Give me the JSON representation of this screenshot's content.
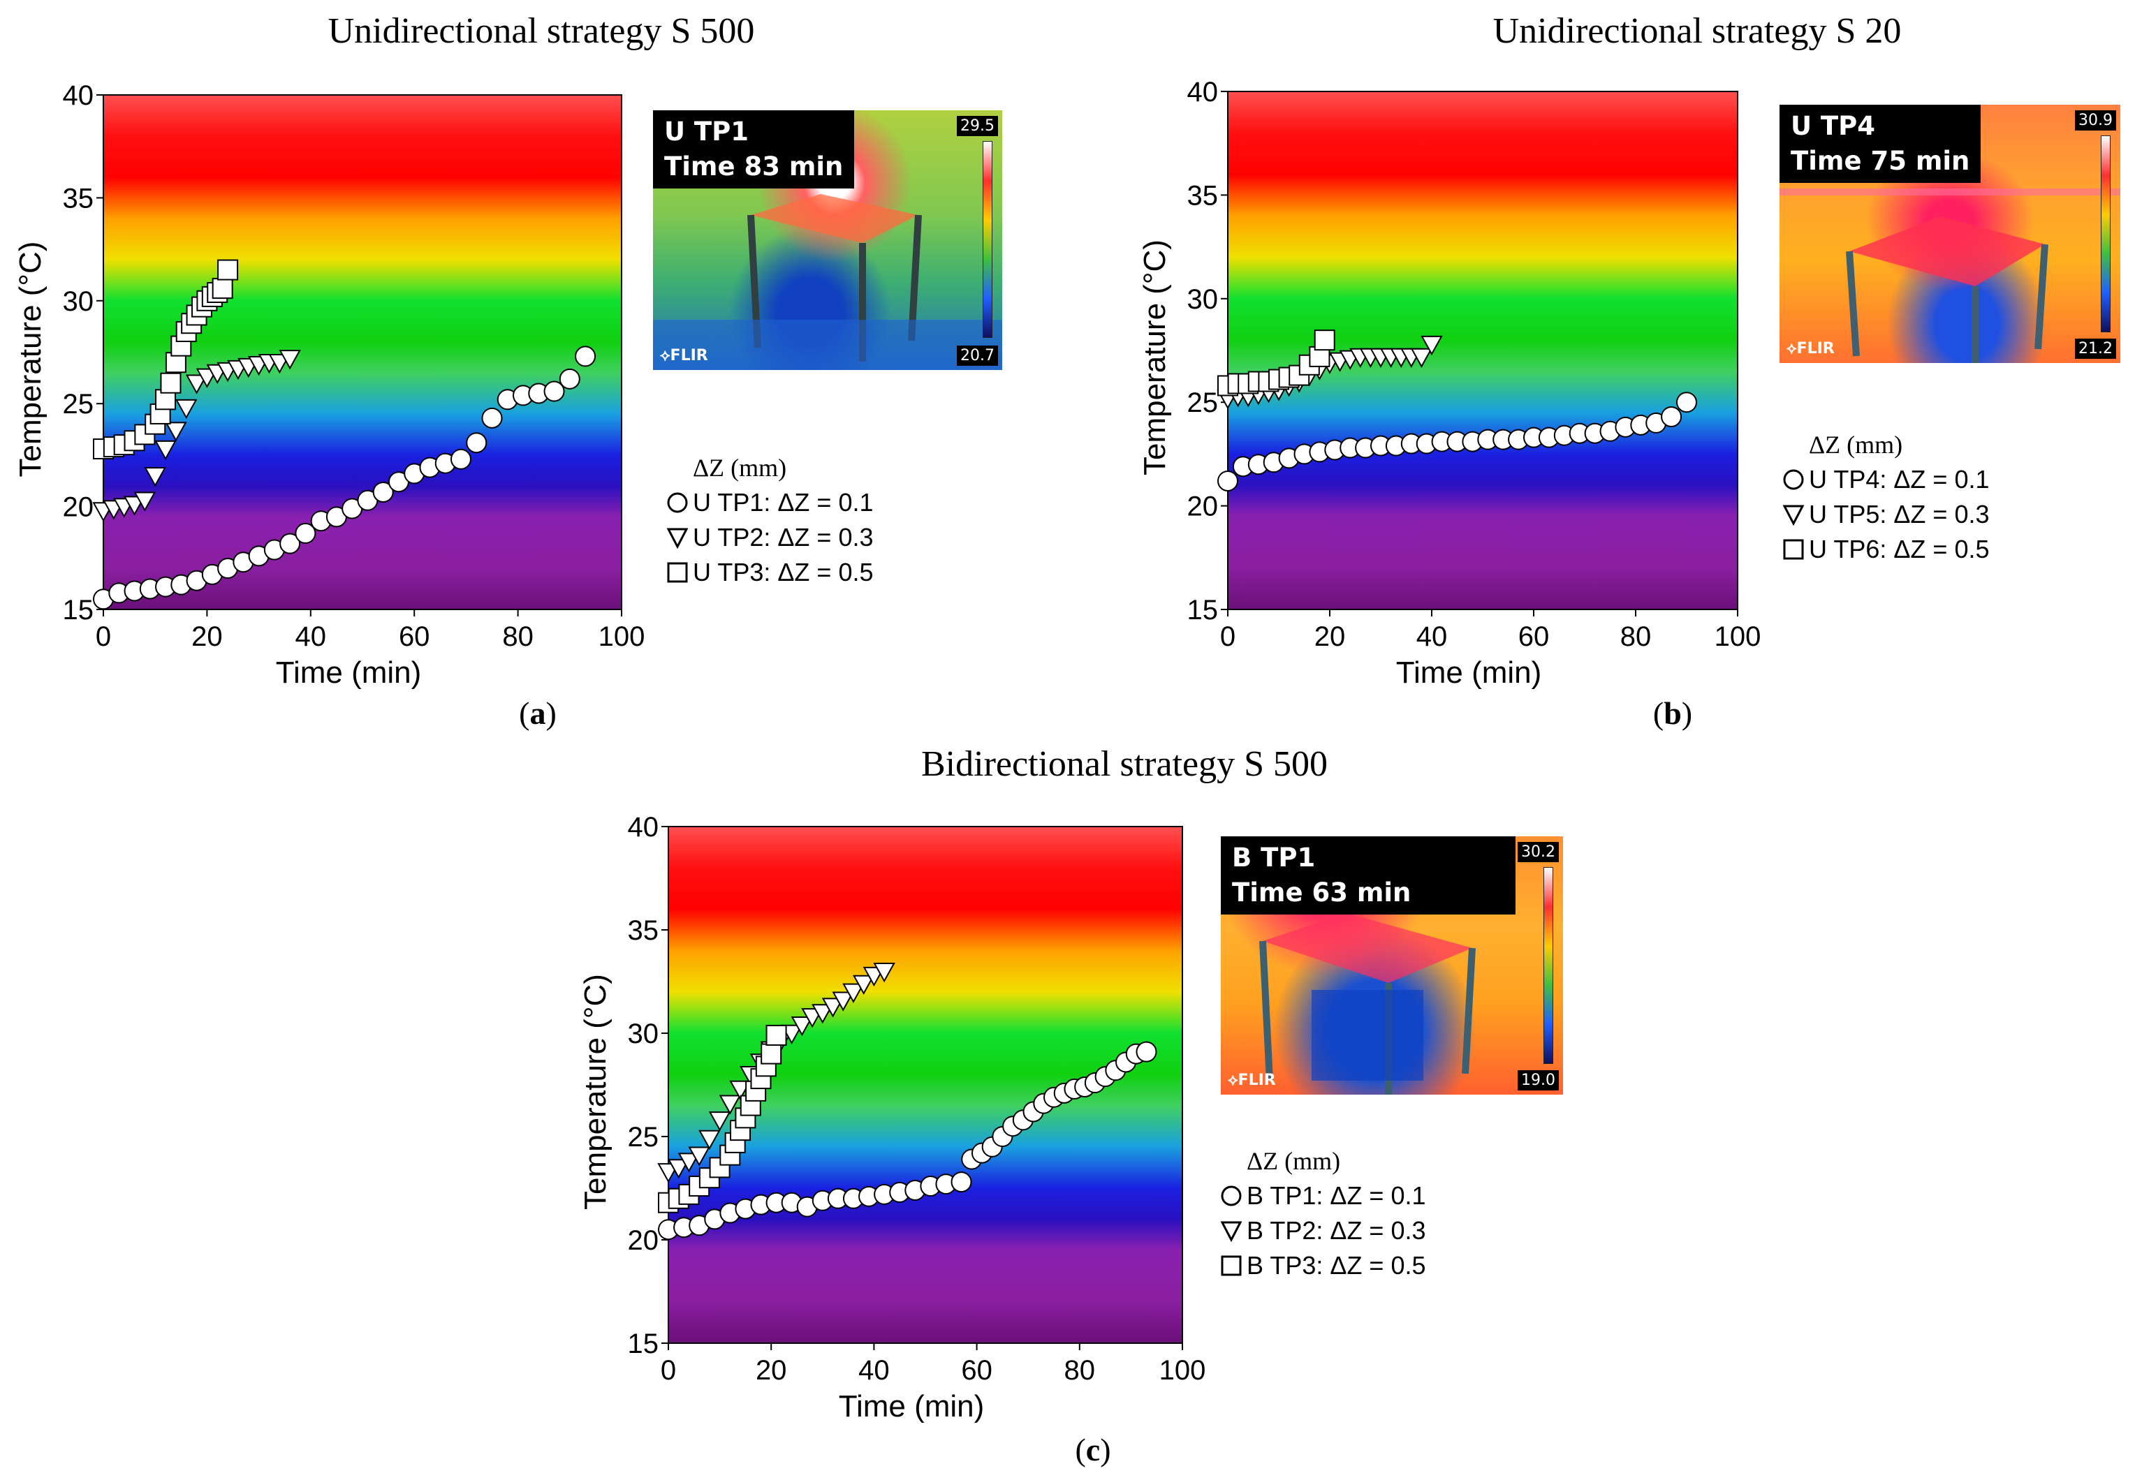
{
  "figure": {
    "panels": [
      {
        "id": "a",
        "title": "Unidirectional strategy S 500",
        "caption_letter": "a",
        "thermal": {
          "label_line1": "U TP1",
          "label_line2": "Time 83 min",
          "scale_max": "29.5",
          "scale_min": "20.7",
          "brand": "FLIR"
        },
        "legend_title": "ΔZ (mm)",
        "series_labels": [
          "U TP1: ΔZ = 0.1",
          "U TP2: ΔZ = 0.3",
          "U TP3: ΔZ = 0.5"
        ]
      },
      {
        "id": "b",
        "title": "Unidirectional strategy S 20",
        "caption_letter": "b",
        "thermal": {
          "label_line1": "U TP4",
          "label_line2": "Time 75 min",
          "scale_max": "30.9",
          "scale_min": "21.2",
          "brand": "FLIR"
        },
        "legend_title": "ΔZ (mm)",
        "series_labels": [
          "U TP4: ΔZ = 0.1",
          "U TP5: ΔZ = 0.3",
          "U TP6: ΔZ = 0.5"
        ]
      },
      {
        "id": "c",
        "title": "Bidirectional strategy S 500",
        "caption_letter": "c",
        "thermal": {
          "label_line1": "B TP1",
          "label_line2": "Time 63 min",
          "scale_max": "30.2",
          "scale_min": "19.0",
          "brand": "FLIR"
        },
        "legend_title": "ΔZ (mm)",
        "series_labels": [
          "B TP1: ΔZ = 0.1",
          "B TP2: ΔZ = 0.3",
          "B TP3: ΔZ = 0.5"
        ]
      }
    ],
    "background_gradient": {
      "stops_temperature": [
        15,
        17,
        19.5,
        21,
        22.5,
        24.5,
        26.5,
        28,
        30,
        32,
        34,
        36,
        38,
        40
      ],
      "colors": [
        "#6a0f78",
        "#8a1fa0",
        "#8a20b0",
        "#2a10c0",
        "#1a20e0",
        "#1aa0e0",
        "#40d060",
        "#10d010",
        "#10e030",
        "#f0e000",
        "#ffa000",
        "#ff0000",
        "#ff1010",
        "#ff5050"
      ]
    }
  },
  "chart_data": [
    {
      "type": "scatter",
      "title": "Unidirectional strategy S 500",
      "xlabel": "Time (min)",
      "ylabel": "Temperature (°C)",
      "xlim": [
        0,
        100
      ],
      "ylim": [
        15,
        40
      ],
      "xticks": [
        0,
        20,
        40,
        60,
        80,
        100
      ],
      "yticks": [
        15,
        20,
        25,
        30,
        35,
        40
      ],
      "series": [
        {
          "name": "U TP1: ΔZ = 0.1",
          "marker": "circle",
          "x": [
            0,
            3,
            6,
            9,
            12,
            15,
            18,
            21,
            24,
            27,
            30,
            33,
            36,
            39,
            42,
            45,
            48,
            51,
            54,
            57,
            60,
            63,
            66,
            69,
            72,
            75,
            78,
            81,
            84,
            87,
            90,
            93
          ],
          "y": [
            15.5,
            15.8,
            15.9,
            16.0,
            16.1,
            16.2,
            16.4,
            16.7,
            17.0,
            17.3,
            17.6,
            17.9,
            18.2,
            18.7,
            19.3,
            19.5,
            19.9,
            20.3,
            20.7,
            21.2,
            21.6,
            21.9,
            22.1,
            22.3,
            23.1,
            24.3,
            25.2,
            25.4,
            25.5,
            25.6,
            26.2,
            27.3
          ]
        },
        {
          "name": "U TP2: ΔZ = 0.3",
          "marker": "triangle-down",
          "x": [
            0,
            2,
            4,
            6,
            8,
            10,
            12,
            14,
            16,
            18,
            20,
            22,
            24,
            26,
            28,
            30,
            32,
            34,
            36
          ],
          "y": [
            19.8,
            19.9,
            20.0,
            20.1,
            20.3,
            21.5,
            22.8,
            23.7,
            24.8,
            26.0,
            26.3,
            26.5,
            26.6,
            26.7,
            26.8,
            26.9,
            27.0,
            27.0,
            27.2
          ]
        },
        {
          "name": "U TP3: ΔZ = 0.5",
          "marker": "square",
          "x": [
            0,
            2,
            4,
            6,
            8,
            10,
            11,
            12,
            13,
            14,
            15,
            16,
            17,
            18,
            19,
            20,
            21,
            22,
            23,
            24
          ],
          "y": [
            22.8,
            22.9,
            23.0,
            23.2,
            23.5,
            24.0,
            24.5,
            25.2,
            26.0,
            27.0,
            27.8,
            28.5,
            28.9,
            29.3,
            29.7,
            30.0,
            30.2,
            30.4,
            30.6,
            31.5
          ]
        }
      ]
    },
    {
      "type": "scatter",
      "title": "Unidirectional strategy S 20",
      "xlabel": "Time (min)",
      "ylabel": "Temperature (°C)",
      "xlim": [
        0,
        100
      ],
      "ylim": [
        15,
        40
      ],
      "xticks": [
        0,
        20,
        40,
        60,
        80,
        100
      ],
      "yticks": [
        15,
        20,
        25,
        30,
        35,
        40
      ],
      "series": [
        {
          "name": "U TP4: ΔZ = 0.1",
          "marker": "circle",
          "x": [
            0,
            3,
            6,
            9,
            12,
            15,
            18,
            21,
            24,
            27,
            30,
            33,
            36,
            39,
            42,
            45,
            48,
            51,
            54,
            57,
            60,
            63,
            66,
            69,
            72,
            75,
            78,
            81,
            84,
            87,
            90
          ],
          "y": [
            21.2,
            21.9,
            22.0,
            22.1,
            22.3,
            22.5,
            22.6,
            22.7,
            22.8,
            22.8,
            22.9,
            22.9,
            23.0,
            23.0,
            23.1,
            23.1,
            23.1,
            23.2,
            23.2,
            23.2,
            23.3,
            23.3,
            23.4,
            23.5,
            23.5,
            23.6,
            23.8,
            23.9,
            24.0,
            24.3,
            25.0
          ]
        },
        {
          "name": "U TP5: ΔZ = 0.3",
          "marker": "triangle-down",
          "x": [
            0,
            2,
            4,
            6,
            8,
            10,
            12,
            14,
            16,
            18,
            20,
            22,
            24,
            26,
            28,
            30,
            32,
            34,
            36,
            38,
            40
          ],
          "y": [
            25.2,
            25.3,
            25.3,
            25.4,
            25.5,
            25.6,
            25.8,
            26.0,
            26.3,
            26.6,
            26.9,
            27.0,
            27.1,
            27.2,
            27.2,
            27.2,
            27.2,
            27.2,
            27.2,
            27.2,
            27.8
          ]
        },
        {
          "name": "U TP6: ΔZ = 0.5",
          "marker": "square",
          "x": [
            0,
            2,
            4,
            6,
            8,
            10,
            12,
            14,
            16,
            18,
            19
          ],
          "y": [
            25.8,
            25.9,
            25.9,
            26.0,
            26.0,
            26.1,
            26.2,
            26.3,
            26.8,
            27.2,
            28.0
          ]
        }
      ]
    },
    {
      "type": "scatter",
      "title": "Bidirectional strategy S 500",
      "xlabel": "Time (min)",
      "ylabel": "Temperature (°C)",
      "xlim": [
        0,
        100
      ],
      "ylim": [
        15,
        40
      ],
      "xticks": [
        0,
        20,
        40,
        60,
        80,
        100
      ],
      "yticks": [
        15,
        20,
        25,
        30,
        35,
        40
      ],
      "series": [
        {
          "name": "B TP1: ΔZ = 0.1",
          "marker": "circle",
          "x": [
            0,
            3,
            6,
            9,
            12,
            15,
            18,
            21,
            24,
            27,
            30,
            33,
            36,
            39,
            42,
            45,
            48,
            51,
            54,
            57,
            59,
            61,
            63,
            65,
            67,
            69,
            71,
            73,
            75,
            77,
            79,
            81,
            83,
            85,
            87,
            89,
            91,
            93
          ],
          "y": [
            20.5,
            20.6,
            20.7,
            21.0,
            21.3,
            21.5,
            21.7,
            21.8,
            21.8,
            21.6,
            21.9,
            22.0,
            22.0,
            22.1,
            22.2,
            22.3,
            22.4,
            22.6,
            22.7,
            22.8,
            23.9,
            24.2,
            24.5,
            25.0,
            25.5,
            25.8,
            26.2,
            26.6,
            26.9,
            27.1,
            27.3,
            27.4,
            27.6,
            27.9,
            28.2,
            28.6,
            29.0,
            29.1
          ]
        },
        {
          "name": "B TP2: ΔZ = 0.3",
          "marker": "triangle-down",
          "x": [
            0,
            2,
            4,
            6,
            8,
            10,
            12,
            14,
            16,
            18,
            20,
            22,
            24,
            26,
            28,
            30,
            32,
            34,
            36,
            38,
            40,
            42
          ],
          "y": [
            23.3,
            23.5,
            23.8,
            24.1,
            24.9,
            25.8,
            26.6,
            27.3,
            28.0,
            28.6,
            29.2,
            29.7,
            30.0,
            30.4,
            30.8,
            31.0,
            31.3,
            31.6,
            32.0,
            32.4,
            32.8,
            33.0
          ]
        },
        {
          "name": "B TP3: ΔZ = 0.5",
          "marker": "square",
          "x": [
            0,
            2,
            4,
            6,
            8,
            10,
            12,
            13,
            14,
            15,
            16,
            17,
            18,
            19,
            20,
            21
          ],
          "y": [
            21.8,
            22.0,
            22.2,
            22.6,
            23.0,
            23.5,
            24.1,
            24.7,
            25.3,
            25.9,
            26.5,
            27.2,
            27.8,
            28.4,
            29.0,
            29.9
          ]
        }
      ]
    }
  ]
}
